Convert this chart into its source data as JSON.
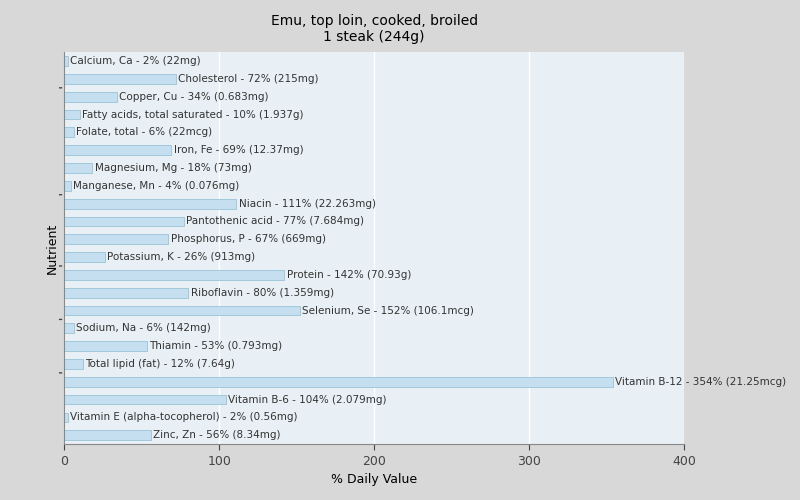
{
  "title": "Emu, top loin, cooked, broiled\n1 steak (244g)",
  "xlabel": "% Daily Value",
  "ylabel": "Nutrient",
  "xlim": [
    0,
    400
  ],
  "xticks": [
    0,
    100,
    200,
    300,
    400
  ],
  "background_color": "#d8d8d8",
  "plot_background": "#e8f0f5",
  "bar_color": "#c5dff0",
  "bar_edge_color": "#7ab0cc",
  "nutrients": [
    {
      "label": "Calcium, Ca - 2% (22mg)",
      "value": 2
    },
    {
      "label": "Cholesterol - 72% (215mg)",
      "value": 72
    },
    {
      "label": "Copper, Cu - 34% (0.683mg)",
      "value": 34
    },
    {
      "label": "Fatty acids, total saturated - 10% (1.937g)",
      "value": 10
    },
    {
      "label": "Folate, total - 6% (22mcg)",
      "value": 6
    },
    {
      "label": "Iron, Fe - 69% (12.37mg)",
      "value": 69
    },
    {
      "label": "Magnesium, Mg - 18% (73mg)",
      "value": 18
    },
    {
      "label": "Manganese, Mn - 4% (0.076mg)",
      "value": 4
    },
    {
      "label": "Niacin - 111% (22.263mg)",
      "value": 111
    },
    {
      "label": "Pantothenic acid - 77% (7.684mg)",
      "value": 77
    },
    {
      "label": "Phosphorus, P - 67% (669mg)",
      "value": 67
    },
    {
      "label": "Potassium, K - 26% (913mg)",
      "value": 26
    },
    {
      "label": "Protein - 142% (70.93g)",
      "value": 142
    },
    {
      "label": "Riboflavin - 80% (1.359mg)",
      "value": 80
    },
    {
      "label": "Selenium, Se - 152% (106.1mcg)",
      "value": 152
    },
    {
      "label": "Sodium, Na - 6% (142mg)",
      "value": 6
    },
    {
      "label": "Thiamin - 53% (0.793mg)",
      "value": 53
    },
    {
      "label": "Total lipid (fat) - 12% (7.64g)",
      "value": 12
    },
    {
      "label": "Vitamin B-12 - 354% (21.25mcg)",
      "value": 354
    },
    {
      "label": "Vitamin B-6 - 104% (2.079mg)",
      "value": 104
    },
    {
      "label": "Vitamin E (alpha-tocopherol) - 2% (0.56mg)",
      "value": 2
    },
    {
      "label": "Zinc, Zn - 56% (8.34mg)",
      "value": 56
    }
  ],
  "group_tick_after": [
    1,
    7,
    11,
    14,
    17
  ],
  "title_fontsize": 10,
  "axis_label_fontsize": 9,
  "tick_fontsize": 9,
  "bar_label_fontsize": 7.5,
  "grid_color": "#ffffff",
  "tick_color": "#444444",
  "label_color": "#333333"
}
